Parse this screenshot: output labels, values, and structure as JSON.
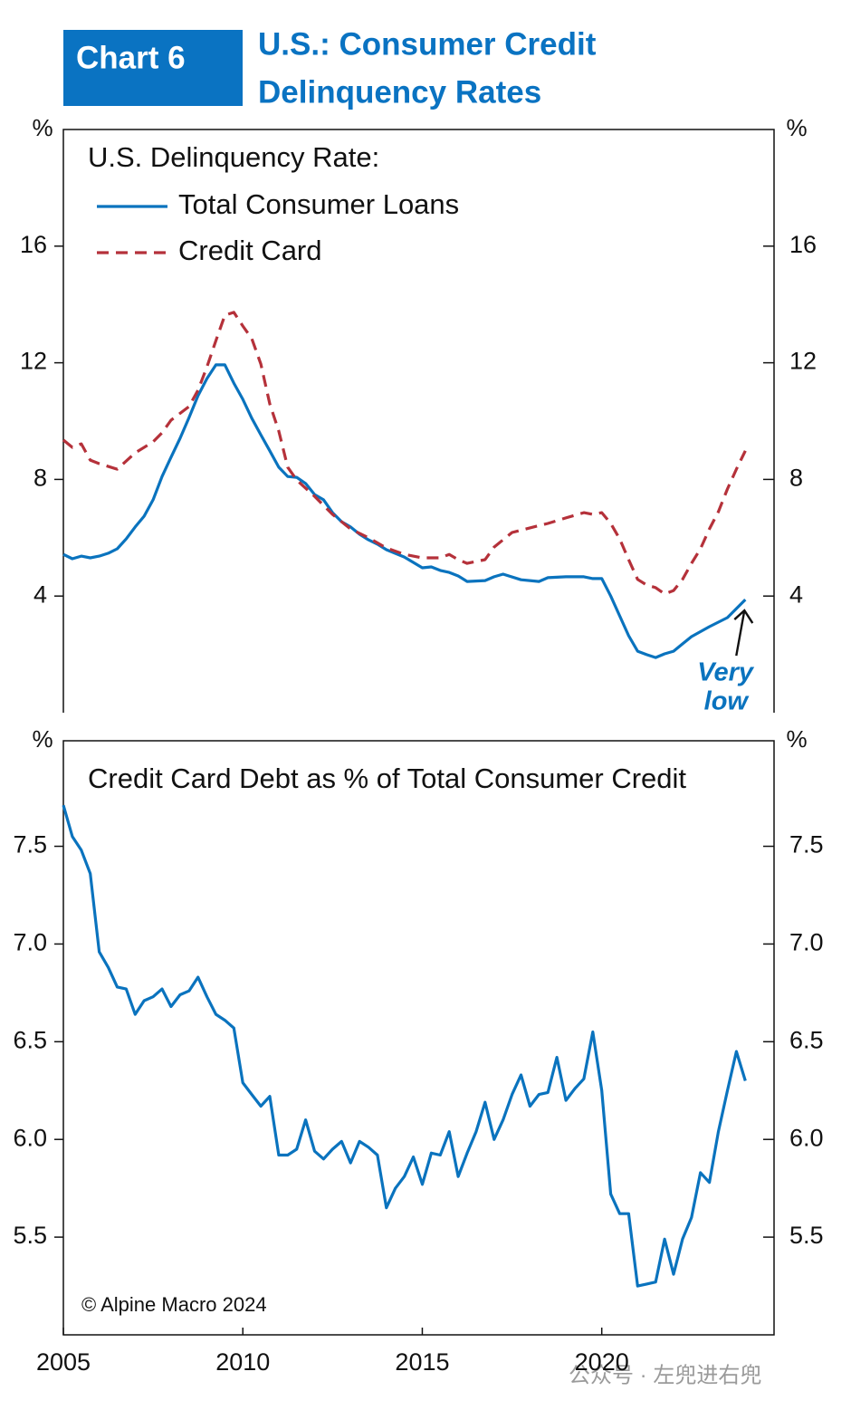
{
  "header": {
    "label": "Chart 6",
    "title": [
      "U.S.: Consumer Credit",
      "Delinquency Rates"
    ]
  },
  "watermark": "公众号 · 左兜进右兜",
  "chart_data": [
    {
      "type": "line",
      "legend_title": "U.S. Delinquency Rate:",
      "y_label": "%",
      "xlim": [
        2005,
        2024.8
      ],
      "ylim": [
        0,
        20
      ],
      "yticks": [
        4,
        8,
        12,
        16
      ],
      "annotation": [
        "Very",
        "low"
      ],
      "annotation_color": "#0a73be",
      "series": [
        {
          "name": "Total Consumer Loans",
          "color": "#0a73be",
          "linestyle": "solid",
          "x": [
            2005,
            2005.25,
            2005.5,
            2005.75,
            2006,
            2006.25,
            2006.5,
            2006.75,
            2007,
            2007.25,
            2007.5,
            2007.75,
            2008,
            2008.25,
            2008.5,
            2008.75,
            2009,
            2009.25,
            2009.5,
            2009.75,
            2010,
            2010.25,
            2010.5,
            2010.75,
            2011,
            2011.25,
            2011.5,
            2011.75,
            2012,
            2012.25,
            2012.5,
            2012.75,
            2013,
            2013.25,
            2013.5,
            2013.75,
            2014,
            2014.5,
            2015,
            2015.25,
            2015.5,
            2015.75,
            2016,
            2016.25,
            2016.75,
            2017,
            2017.25,
            2017.75,
            2018.25,
            2018.5,
            2019,
            2019.5,
            2019.75,
            2020,
            2020.25,
            2020.5,
            2020.75,
            2021,
            2021.25,
            2021.5,
            2021.75,
            2022,
            2022.25,
            2022.5,
            2023,
            2023.5,
            2024
          ],
          "values": [
            5.43,
            5.28,
            5.37,
            5.31,
            5.37,
            5.47,
            5.62,
            5.96,
            6.37,
            6.74,
            7.3,
            8.1,
            8.76,
            9.41,
            10.12,
            10.87,
            11.46,
            11.93,
            11.93,
            11.3,
            10.75,
            10.1,
            9.53,
            8.98,
            8.42,
            8.1,
            8.07,
            7.86,
            7.48,
            7.3,
            6.86,
            6.55,
            6.37,
            6.12,
            5.93,
            5.78,
            5.59,
            5.34,
            4.97,
            5.0,
            4.88,
            4.81,
            4.69,
            4.5,
            4.53,
            4.66,
            4.75,
            4.56,
            4.5,
            4.63,
            4.66,
            4.66,
            4.6,
            4.6,
            4.0,
            3.32,
            2.64,
            2.11,
            1.99,
            1.89,
            2.02,
            2.11,
            2.36,
            2.61,
            2.95,
            3.26,
            3.88
          ]
        },
        {
          "name": "Credit Card",
          "color": "#b5313a",
          "linestyle": "dashed",
          "x": [
            2005,
            2005.25,
            2005.5,
            2005.75,
            2006,
            2006.5,
            2007,
            2007.5,
            2007.75,
            2008,
            2008.5,
            2008.75,
            2009,
            2009.25,
            2009.5,
            2009.75,
            2010,
            2010.25,
            2010.5,
            2010.75,
            2011,
            2011.25,
            2011.5,
            2012,
            2012.5,
            2013,
            2013.5,
            2014,
            2014.5,
            2015,
            2015.5,
            2015.75,
            2016,
            2016.25,
            2016.75,
            2017,
            2017.5,
            2018,
            2018.5,
            2019,
            2019.5,
            2019.75,
            2020,
            2020.25,
            2020.5,
            2020.75,
            2021,
            2021.25,
            2021.5,
            2021.75,
            2022,
            2022.25,
            2022.5,
            2022.75,
            2023,
            2023.25,
            2023.5,
            2023.75,
            2024
          ],
          "values": [
            9.35,
            9.1,
            9.22,
            8.66,
            8.54,
            8.35,
            8.91,
            9.29,
            9.6,
            10.03,
            10.5,
            11.06,
            11.86,
            12.76,
            13.63,
            13.73,
            13.26,
            12.83,
            11.96,
            10.59,
            9.66,
            8.42,
            7.98,
            7.42,
            6.8,
            6.3,
            6.0,
            5.65,
            5.43,
            5.31,
            5.31,
            5.43,
            5.25,
            5.12,
            5.25,
            5.68,
            6.18,
            6.34,
            6.49,
            6.68,
            6.86,
            6.8,
            6.86,
            6.49,
            5.96,
            5.25,
            4.57,
            4.38,
            4.29,
            4.07,
            4.19,
            4.57,
            5.12,
            5.62,
            6.3,
            6.89,
            7.67,
            8.35,
            8.98
          ]
        }
      ]
    },
    {
      "type": "line",
      "title": "Credit Card Debt as % of Total Consumer Credit",
      "y_label": "%",
      "source": "© Alpine Macro 2024",
      "xlim": [
        2005,
        2024.8
      ],
      "xticks": [
        2005,
        2010,
        2015,
        2020
      ],
      "ylim": [
        5.0,
        8.04
      ],
      "yticks": [
        {
          "value": 5.5,
          "label": "5.5"
        },
        {
          "value": 6.0,
          "label": "6.0"
        },
        {
          "value": 6.5,
          "label": "6.5"
        },
        {
          "value": 7.0,
          "label": "7.0"
        },
        {
          "value": 7.5,
          "label": "7.5"
        }
      ],
      "series": [
        {
          "color": "#0a73be",
          "linestyle": "solid",
          "x": [
            2005,
            2005.25,
            2005.5,
            2005.75,
            2006,
            2006.25,
            2006.5,
            2006.75,
            2007,
            2007.25,
            2007.5,
            2007.75,
            2008,
            2008.25,
            2008.5,
            2008.75,
            2009,
            2009.25,
            2009.5,
            2009.75,
            2010,
            2010.25,
            2010.5,
            2010.75,
            2011,
            2011.25,
            2011.5,
            2011.75,
            2012,
            2012.25,
            2012.5,
            2012.75,
            2013,
            2013.25,
            2013.5,
            2013.75,
            2014,
            2014.25,
            2014.5,
            2014.75,
            2015,
            2015.25,
            2015.5,
            2015.75,
            2016,
            2016.25,
            2016.5,
            2016.75,
            2017,
            2017.25,
            2017.5,
            2017.75,
            2018,
            2018.25,
            2018.5,
            2018.75,
            2019,
            2019.25,
            2019.5,
            2019.75,
            2020,
            2020.25,
            2020.5,
            2020.75,
            2021,
            2021.25,
            2021.5,
            2021.75,
            2022,
            2022.25,
            2022.5,
            2022.75,
            2023,
            2023.25,
            2023.5,
            2023.75,
            2024
          ],
          "values": [
            7.71,
            7.55,
            7.48,
            7.36,
            6.96,
            6.88,
            6.78,
            6.77,
            6.64,
            6.71,
            6.73,
            6.77,
            6.68,
            6.74,
            6.76,
            6.83,
            6.73,
            6.64,
            6.61,
            6.57,
            6.29,
            6.23,
            6.17,
            6.22,
            5.92,
            5.92,
            5.95,
            6.1,
            5.94,
            5.9,
            5.95,
            5.99,
            5.88,
            5.99,
            5.96,
            5.92,
            5.65,
            5.75,
            5.81,
            5.91,
            5.77,
            5.93,
            5.92,
            6.04,
            5.81,
            5.93,
            6.04,
            6.19,
            6.0,
            6.1,
            6.23,
            6.33,
            6.17,
            6.23,
            6.24,
            6.42,
            6.2,
            6.26,
            6.31,
            6.55,
            6.25,
            5.72,
            5.62,
            5.62,
            5.25,
            5.26,
            5.27,
            5.49,
            5.31,
            5.49,
            5.6,
            5.83,
            5.78,
            6.04,
            6.25,
            6.45,
            6.3
          ]
        }
      ]
    }
  ]
}
